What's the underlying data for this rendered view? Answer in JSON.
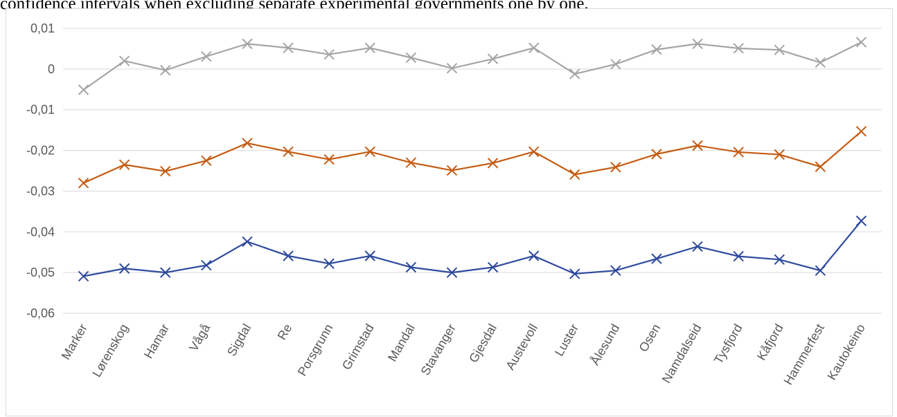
{
  "caption": "confidence intervals when excluding separate experimental governments one by one.",
  "chart_data": {
    "type": "line",
    "title": "",
    "xlabel": "",
    "ylabel": "",
    "ylim": [
      -0.06,
      0.01
    ],
    "y_ticks": [
      0.01,
      0,
      -0.01,
      -0.02,
      -0.03,
      -0.04,
      -0.05,
      -0.06
    ],
    "y_tick_labels": [
      "0,01",
      "0",
      "-0,01",
      "-0,02",
      "-0,03",
      "-0,04",
      "-0,05",
      "-0,06"
    ],
    "grid": true,
    "legend": "none",
    "marker": "x",
    "categories": [
      "Marker",
      "Lørenskog",
      "Hamar",
      "Vågå",
      "Sigdal",
      "Re",
      "Porsgrunn",
      "Grimstad",
      "Mandal",
      "Stavanger",
      "Gjesdal",
      "Austevoll",
      "Luster",
      "Ålesund",
      "Osen",
      "Namdalseid",
      "Tysfjord",
      "Kåfjord",
      "Hammerfest",
      "Kautokeino"
    ],
    "series": [
      {
        "color": "#a5a5a5",
        "values": [
          -0.0051,
          0.002,
          -0.0003,
          0.0031,
          0.0062,
          0.0052,
          0.0036,
          0.0052,
          0.0028,
          0.0002,
          0.0025,
          0.0052,
          -0.0012,
          0.0012,
          0.0048,
          0.0062,
          0.0051,
          0.0047,
          0.0016,
          0.0066
        ]
      },
      {
        "color": "#c55a11",
        "values": [
          -0.028,
          -0.0235,
          -0.0251,
          -0.0225,
          -0.0182,
          -0.0203,
          -0.0222,
          -0.0203,
          -0.023,
          -0.0249,
          -0.0231,
          -0.0203,
          -0.0259,
          -0.0241,
          -0.0209,
          -0.0188,
          -0.0204,
          -0.021,
          -0.024,
          -0.0153
        ]
      },
      {
        "color": "#2e4a9e",
        "values": [
          -0.0509,
          -0.049,
          -0.05,
          -0.0482,
          -0.0424,
          -0.0459,
          -0.0478,
          -0.0459,
          -0.0487,
          -0.05,
          -0.0487,
          -0.0459,
          -0.0503,
          -0.0495,
          -0.0466,
          -0.0436,
          -0.046,
          -0.0468,
          -0.0495,
          -0.0373
        ]
      }
    ]
  }
}
